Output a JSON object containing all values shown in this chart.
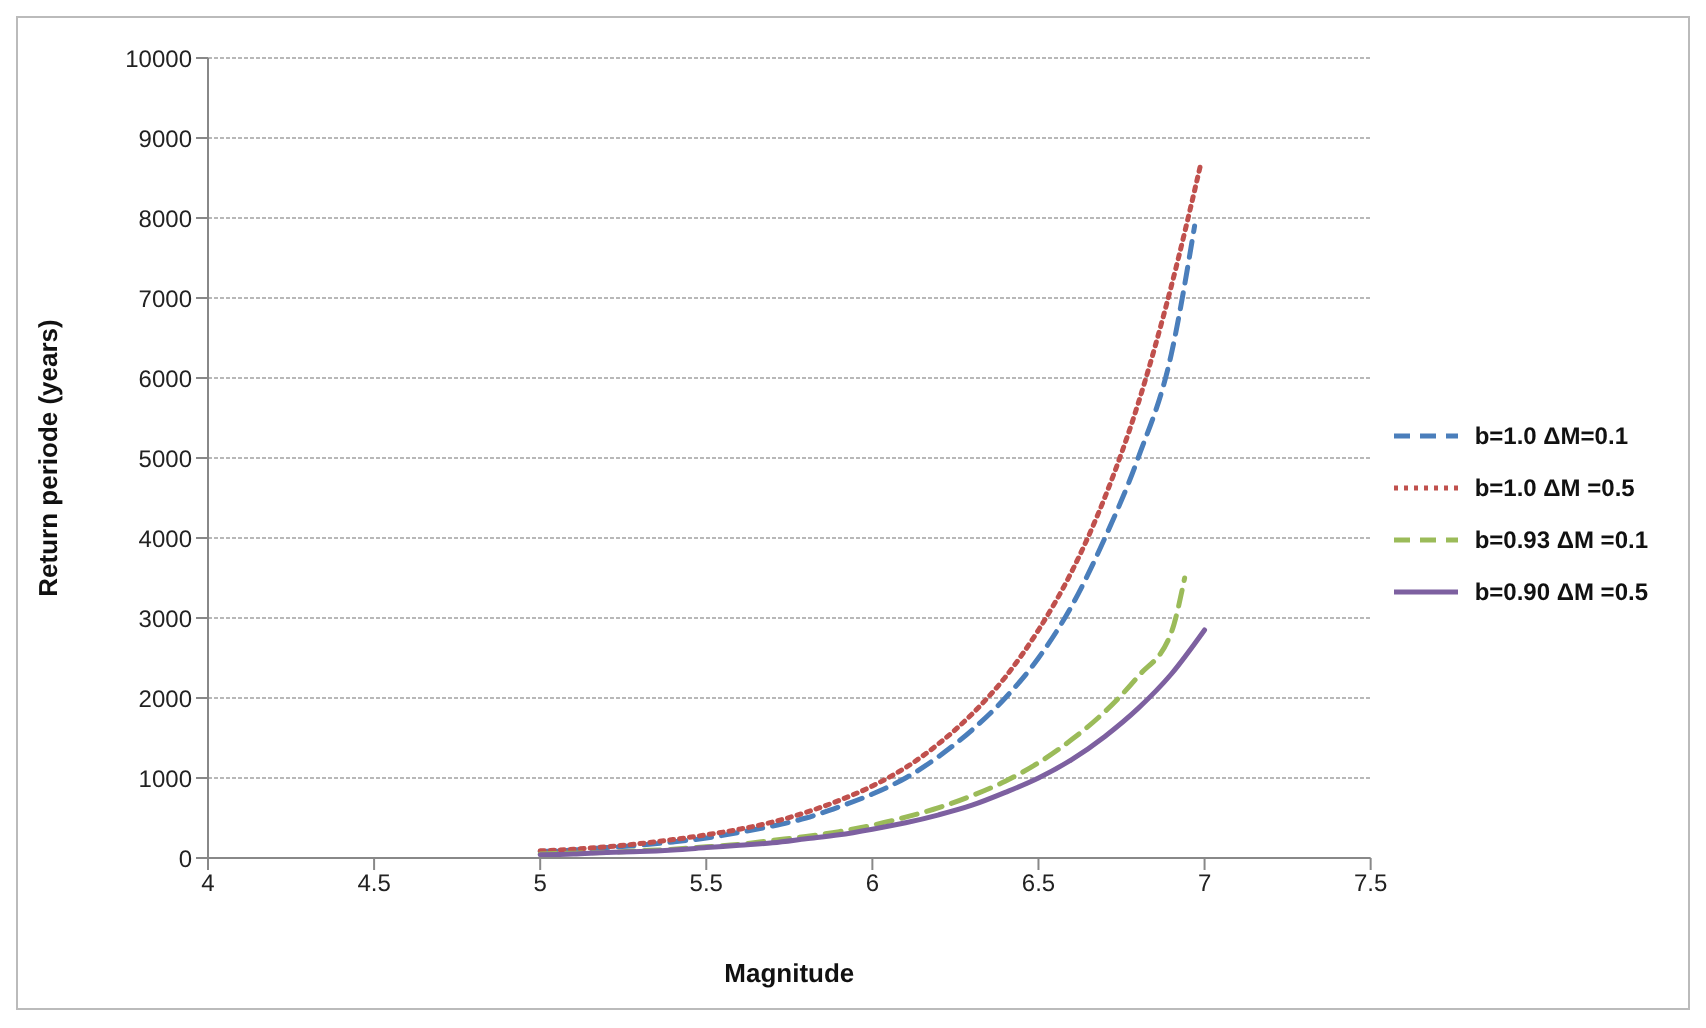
{
  "chart_data": {
    "type": "line",
    "xlabel": "Magnitude",
    "ylabel": "Return periode (years)",
    "xlim": [
      4,
      7.5
    ],
    "xticks": [
      4,
      4.5,
      5,
      5.5,
      6,
      6.5,
      7,
      7.5
    ],
    "ylim": [
      0,
      10000
    ],
    "yticks": [
      0,
      1000,
      2000,
      3000,
      4000,
      5000,
      6000,
      7000,
      8000,
      9000,
      10000
    ],
    "grid": "y",
    "legend": "right",
    "marker": "none",
    "series": [
      {
        "name": "b=1.0 ΔM=0.1",
        "color": "#4a7ebb",
        "line_style": "dashed",
        "x": [
          5,
          5.1,
          5.2,
          5.3,
          5.4,
          5.5,
          5.6,
          5.7,
          5.8,
          5.9,
          6,
          6.1,
          6.2,
          6.3,
          6.4,
          6.5,
          6.6,
          6.7,
          6.8,
          6.9,
          6.97
        ],
        "values": [
          80,
          100,
          130,
          160,
          200,
          250,
          320,
          400,
          500,
          640,
          800,
          1000,
          1270,
          1600,
          2000,
          2500,
          3150,
          4000,
          5000,
          6300,
          7900
        ]
      },
      {
        "name": "b=1.0 ΔM =0.5",
        "color": "#c0504d",
        "line_style": "dotted",
        "x": [
          5,
          5.1,
          5.2,
          5.3,
          5.4,
          5.5,
          5.6,
          5.7,
          5.8,
          5.9,
          6,
          6.1,
          6.2,
          6.3,
          6.4,
          6.5,
          6.6,
          6.7,
          6.8,
          6.9,
          6.99
        ],
        "values": [
          90,
          110,
          140,
          180,
          230,
          290,
          360,
          450,
          570,
          720,
          900,
          1130,
          1430,
          1800,
          2260,
          2850,
          3580,
          4510,
          5680,
          7150,
          8700
        ]
      },
      {
        "name": "b=0.93 ΔM =0.1",
        "color": "#9bbb59",
        "line_style": "dashed",
        "x": [
          5,
          5.1,
          5.2,
          5.3,
          5.4,
          5.5,
          5.6,
          5.7,
          5.8,
          5.9,
          6,
          6.1,
          6.2,
          6.3,
          6.4,
          6.5,
          6.6,
          6.7,
          6.8,
          6.9,
          6.94
        ],
        "values": [
          50,
          60,
          70,
          90,
          110,
          140,
          170,
          220,
          270,
          330,
          410,
          510,
          630,
          780,
          960,
          1190,
          1480,
          1830,
          2270,
          2820,
          3500
        ]
      },
      {
        "name": "b=0.90 ΔM =0.5",
        "color": "#7d60a0",
        "line_style": "solid",
        "x": [
          5,
          5.1,
          5.2,
          5.3,
          5.4,
          5.5,
          5.6,
          5.7,
          5.8,
          5.9,
          6,
          6.1,
          6.2,
          6.3,
          6.4,
          6.5,
          6.6,
          6.7,
          6.8,
          6.9,
          7
        ],
        "values": [
          40,
          50,
          70,
          80,
          100,
          130,
          160,
          190,
          240,
          290,
          360,
          440,
          540,
          660,
          820,
          1000,
          1230,
          1520,
          1870,
          2300,
          2850
        ]
      }
    ]
  }
}
